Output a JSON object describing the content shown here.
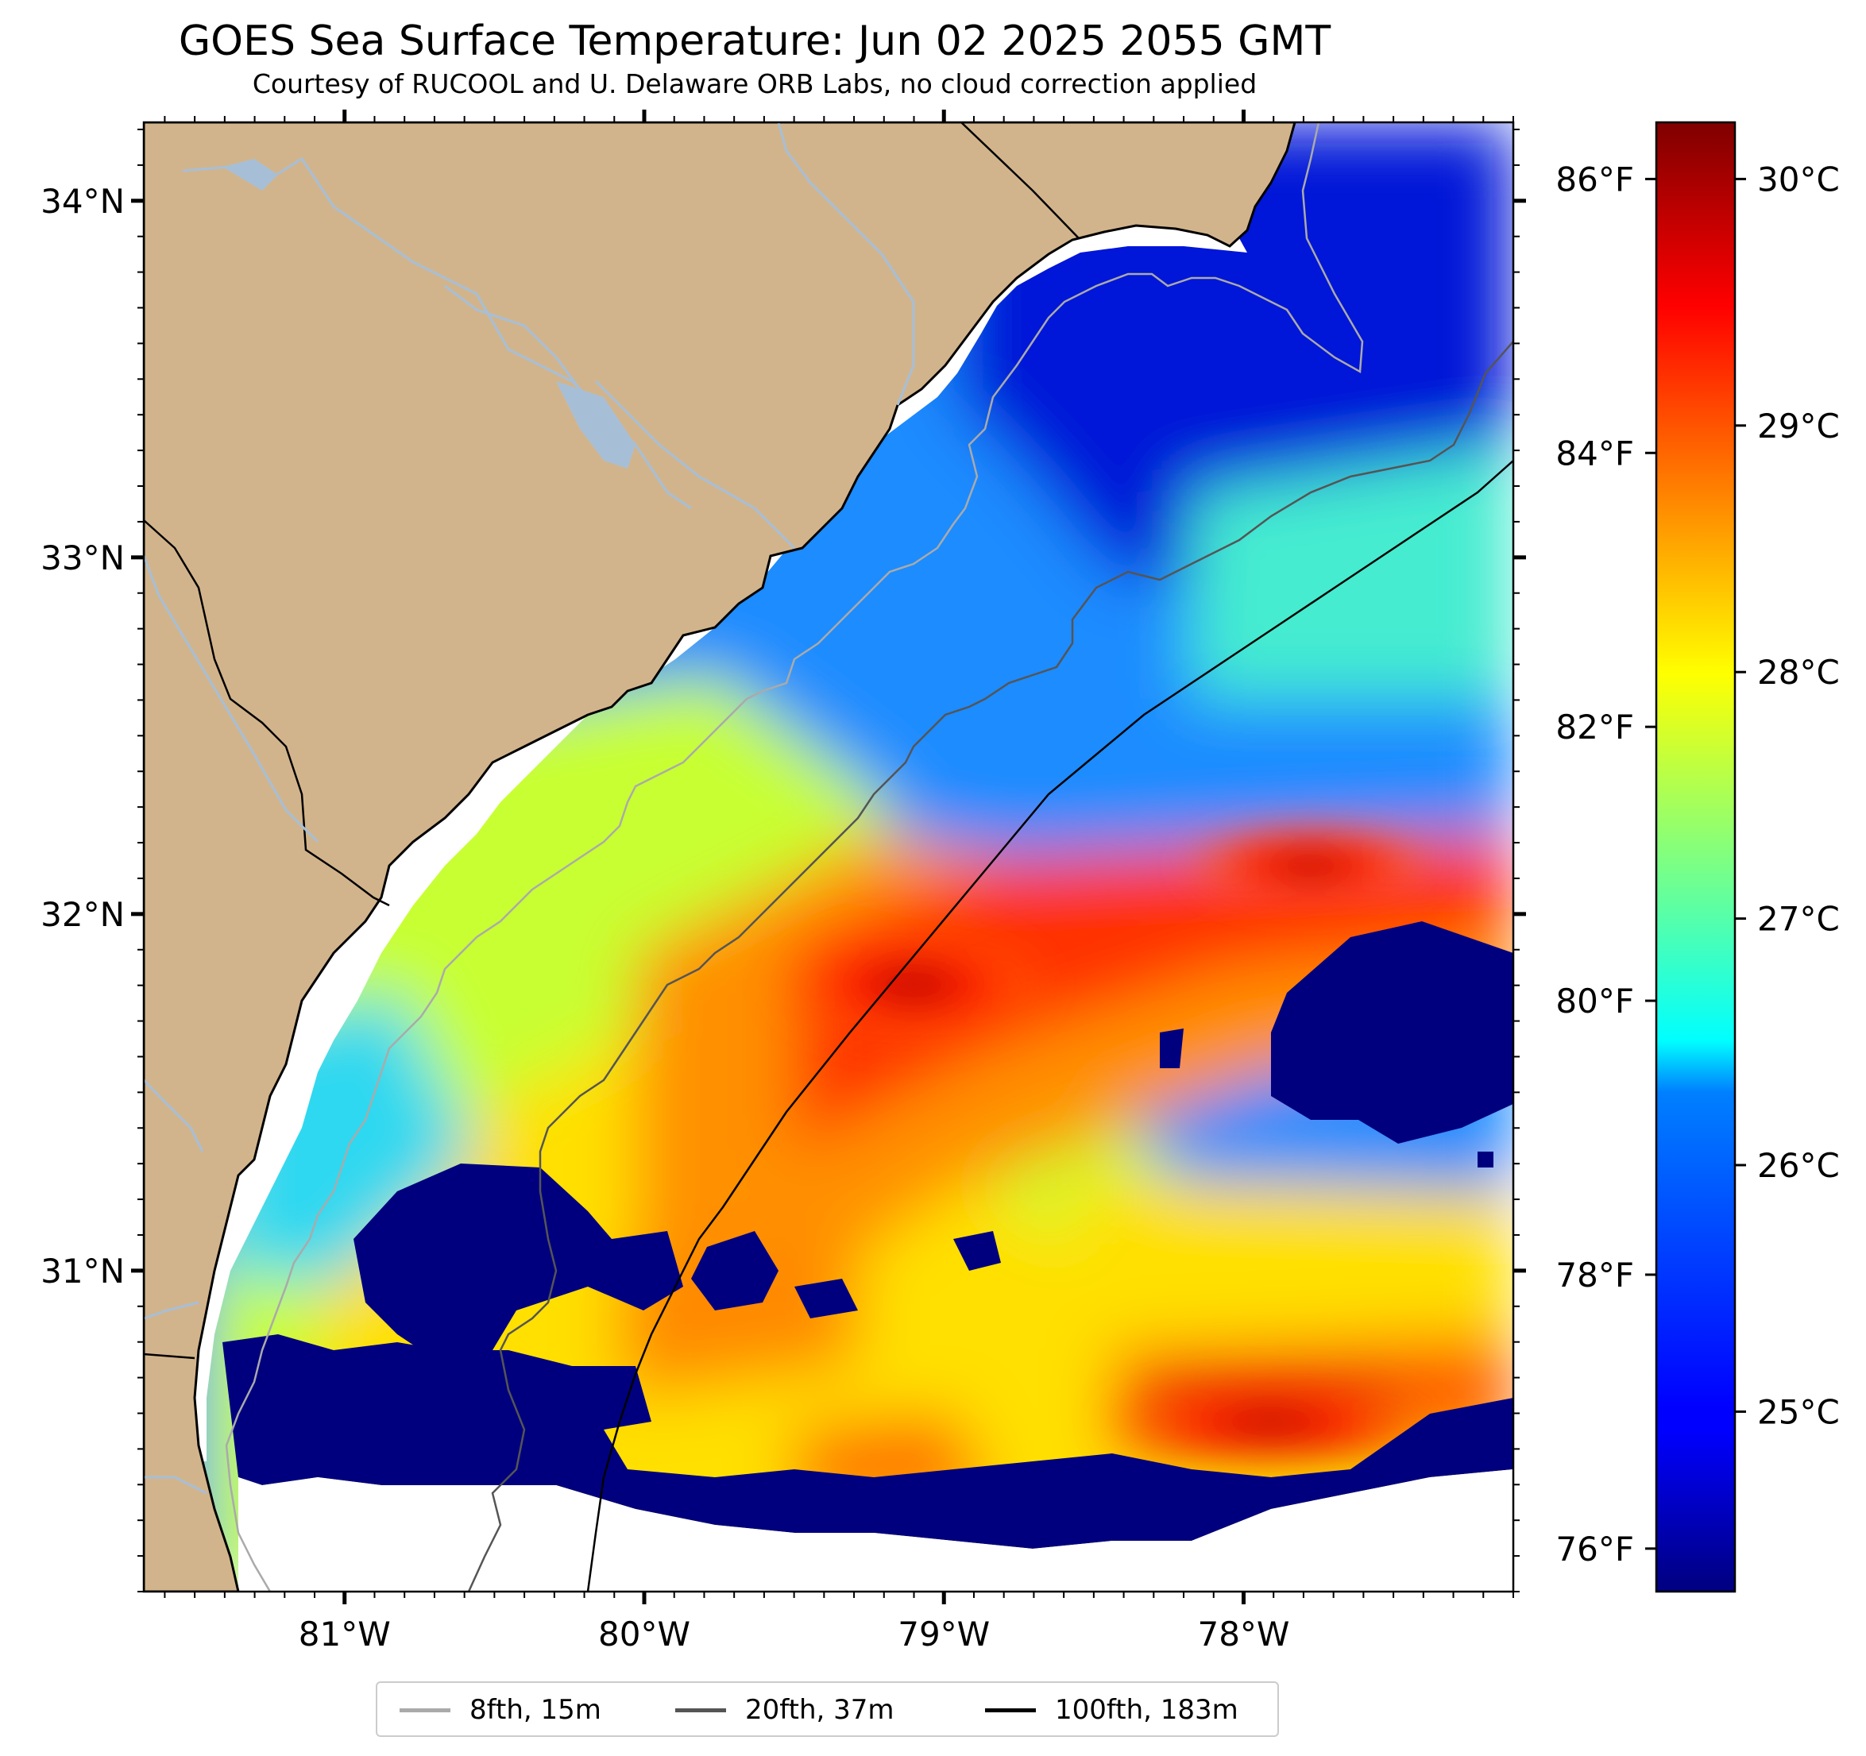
{
  "title": "GOES Sea Surface Temperature: Jun 02 2025 2055 GMT",
  "subtitle": "Courtesy of RUCOOL and U. Delaware ORB Labs, no cloud correction applied",
  "map": {
    "lon_range": [
      -81.67,
      -77.1
    ],
    "lat_range": [
      30.1,
      34.22
    ],
    "lat_ticks": [
      {
        "value": 34,
        "label": "34°N"
      },
      {
        "value": 33,
        "label": "33°N"
      },
      {
        "value": 32,
        "label": "32°N"
      },
      {
        "value": 31,
        "label": "31°N"
      }
    ],
    "lon_ticks": [
      {
        "value": -81,
        "label": "81°W"
      },
      {
        "value": -80,
        "label": "80°W"
      },
      {
        "value": -79,
        "label": "79°W"
      },
      {
        "value": -78,
        "label": "78°W"
      }
    ],
    "colors": {
      "land": "#d2b48c",
      "rivers": "#a7bfd6",
      "coastline": "#000000",
      "no_data": "#ffffff"
    }
  },
  "colorbar": {
    "colormap": "jet",
    "range_c": [
      24.27,
      30.23
    ],
    "celsius_ticks": [
      {
        "value": 25,
        "label": "25°C"
      },
      {
        "value": 26,
        "label": "26°C"
      },
      {
        "value": 27,
        "label": "27°C"
      },
      {
        "value": 28,
        "label": "28°C"
      },
      {
        "value": 29,
        "label": "29°C"
      },
      {
        "value": 30,
        "label": "30°C"
      }
    ],
    "fahrenheit_ticks": [
      {
        "value": 76,
        "label": "76°F"
      },
      {
        "value": 78,
        "label": "78°F"
      },
      {
        "value": 80,
        "label": "80°F"
      },
      {
        "value": 82,
        "label": "82°F"
      },
      {
        "value": 84,
        "label": "84°F"
      },
      {
        "value": 86,
        "label": "86°F"
      }
    ]
  },
  "legend": [
    {
      "label": "8fth, 15m",
      "color": "#aaaaaa"
    },
    {
      "label": "20fth, 37m",
      "color": "#555555"
    },
    {
      "label": "100fth, 183m",
      "color": "#000000"
    }
  ]
}
